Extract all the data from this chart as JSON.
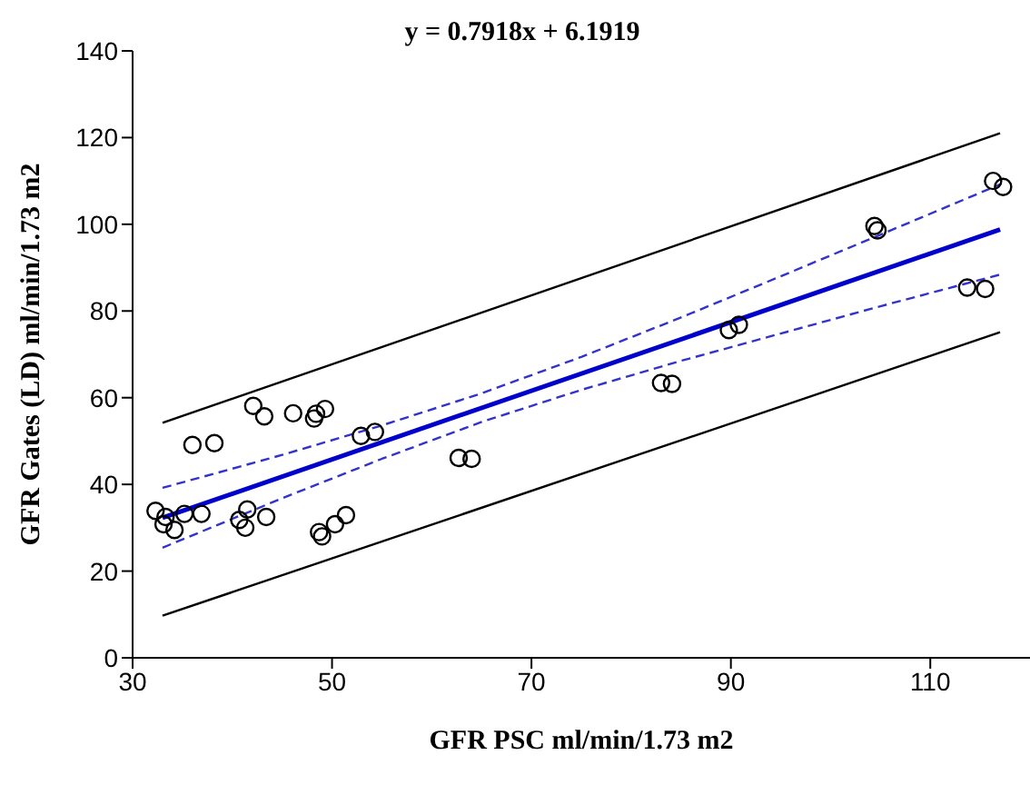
{
  "chart_data": {
    "type": "scatter",
    "annotations": [
      "y = 0.7918x + 6.1919"
    ],
    "xlabel": "GFR PSC ml/min/1.73 m2",
    "ylabel": "GFR Gates (LD) ml/min/1.73 m2",
    "xlim": [
      30,
      120
    ],
    "xticks": [
      30,
      50,
      70,
      90,
      110
    ],
    "ylim": [
      0,
      140
    ],
    "yticks": [
      0,
      20,
      40,
      60,
      80,
      100,
      120,
      140
    ],
    "grid": false,
    "legend": false,
    "x": [
      32.3,
      33.3,
      33.1,
      34.2,
      35.2,
      36.0,
      36.9,
      38.2,
      40.7,
      41.3,
      41.5,
      42.1,
      43.2,
      43.4,
      46.1,
      48.2,
      48.4,
      49.3,
      48.7,
      49.0,
      50.3,
      51.4,
      52.9,
      54.3,
      62.7,
      64.0,
      83.0,
      84.1,
      89.8,
      90.8,
      104.4,
      104.7,
      113.7,
      115.5,
      116.3,
      117.3
    ],
    "series": [
      {
        "color": "#000000",
        "marker": "circle",
        "values": [
          33.9,
          32.5,
          30.8,
          29.5,
          33.2,
          49.1,
          33.2,
          49.5,
          31.8,
          30,
          34.2,
          58.1,
          55.7,
          32.5,
          56.4,
          55.2,
          56.3,
          57.4,
          29,
          28,
          30.8,
          32.9,
          51.2,
          52.1,
          46.1,
          45.9,
          63.4,
          63.2,
          75.6,
          76.8,
          99.6,
          98.6,
          85.4,
          85.1,
          110,
          108.6
        ]
      },
      {
        "type": "line",
        "color": "#0000cc",
        "line_style": "solid",
        "x": [
          33,
          117
        ],
        "values": [
          32.3,
          98.8
        ]
      },
      {
        "type": "line",
        "color": "#3333cc",
        "line_style": "dashed",
        "x": [
          33,
          45,
          55,
          65,
          75,
          85,
          95,
          105,
          117
        ],
        "values": [
          39.2,
          46.8,
          53.6,
          61.0,
          69.4,
          78.5,
          88.0,
          97.6,
          109.2
        ]
      },
      {
        "type": "line",
        "color": "#3333cc",
        "line_style": "dashed",
        "x": [
          33,
          45,
          55,
          65,
          75,
          85,
          95,
          105,
          117
        ],
        "values": [
          25.4,
          36.8,
          45.9,
          54.4,
          61.8,
          68.5,
          74.8,
          81.1,
          88.4
        ]
      },
      {
        "type": "line",
        "color": "#000000",
        "line_style": "solid",
        "x": [
          33,
          117
        ],
        "values": [
          54.2,
          121
        ]
      },
      {
        "type": "line",
        "color": "#000000",
        "line_style": "solid",
        "x": [
          33,
          117
        ],
        "values": [
          9.7,
          75.1
        ]
      }
    ]
  }
}
